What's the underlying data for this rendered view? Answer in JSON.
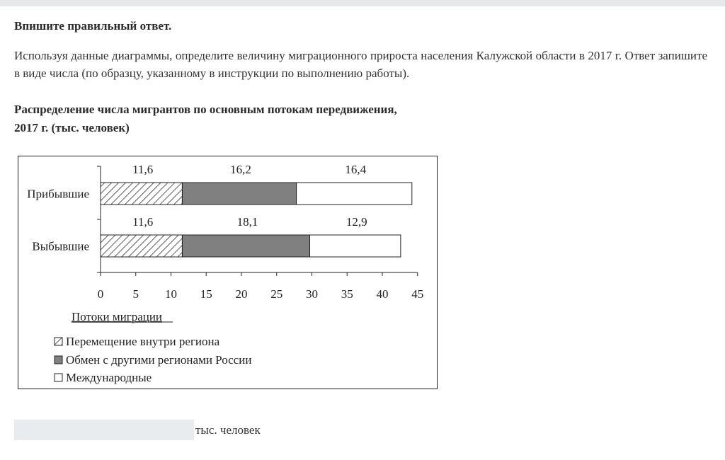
{
  "instruction": "Впишите правильный ответ.",
  "question": "Используя данные диаграммы, определите величину миграционного прироста населения Калужской области в 2017 г. Ответ запишите в виде числа (по образцу, указанному в инструкции по выполнению работы).",
  "chart_title_line1": "Распределение числа мигрантов по основным потокам передвижения,",
  "chart_title_line2": "2017 г. (тыс. человек)",
  "answer": {
    "value": "",
    "unit": "тыс. человек"
  },
  "colors": {
    "internal": "#ffffff",
    "russia": "#808080",
    "international": "#ffffff",
    "stroke": "#222222"
  },
  "chart_data": {
    "type": "bar",
    "orientation": "horizontal",
    "stacked": true,
    "categories": [
      "Прибывшие",
      "Выбывшие"
    ],
    "series": [
      {
        "name": "Перемещение внутри региона",
        "values": [
          11.6,
          11.6
        ],
        "labels": [
          "11,6",
          "11,6"
        ],
        "pattern": "hatched"
      },
      {
        "name": "Обмен с другими регионами России",
        "values": [
          16.2,
          18.1
        ],
        "labels": [
          "16,2",
          "18,1"
        ],
        "pattern": "gray"
      },
      {
        "name": "Международные",
        "values": [
          16.4,
          12.9
        ],
        "labels": [
          "16,4",
          "12,9"
        ],
        "pattern": "white"
      }
    ],
    "xticks": [
      "0",
      "5",
      "10",
      "15",
      "20",
      "25",
      "30",
      "35",
      "40",
      "45"
    ],
    "xlim": [
      0,
      45
    ],
    "xlabel": "Потоки миграции",
    "legend_position": "bottom-left",
    "grid": false
  }
}
